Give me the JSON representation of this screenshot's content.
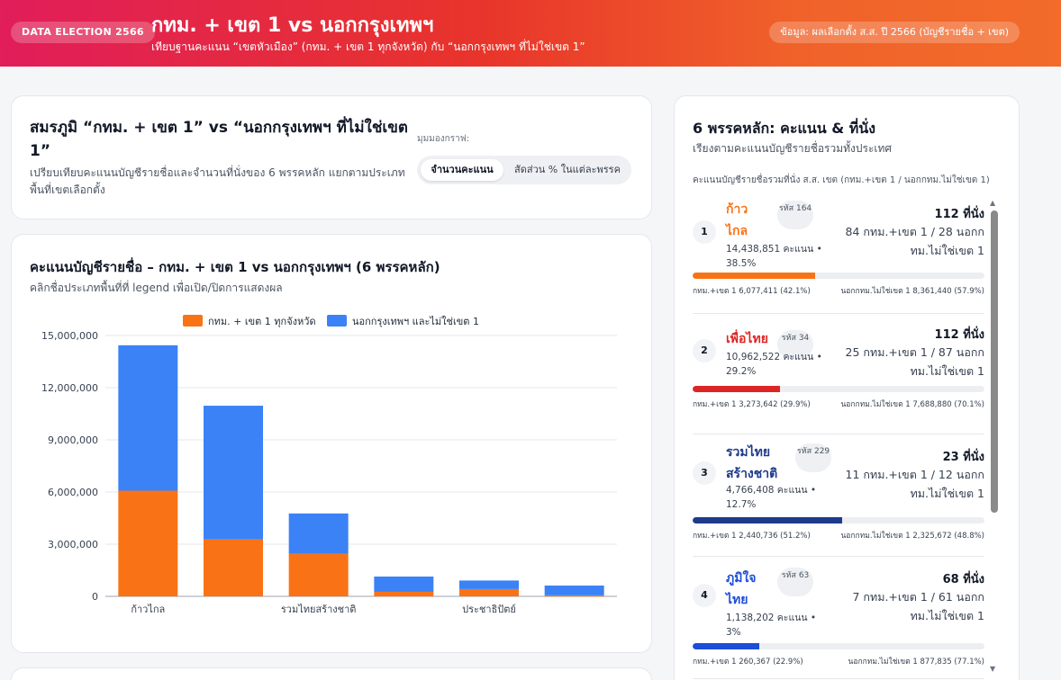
{
  "header": {
    "badge": "DATA ELECTION 2566",
    "title": "กทม. + เขต 1 vs นอกกรุงเทพฯ",
    "subtitle": "เทียบฐานคะแนน “เขตหัวเมือง” (กทม. + เขต 1 ทุกจังหวัด) กับ “นอกกรุงเทพฯ ที่ไม่ใช่เขต 1”",
    "source": "ข้อมูล: ผลเลือกตั้ง ส.ส. ปี 2566 (บัญชีรายชื่อ + เขต)"
  },
  "intro": {
    "title": "สมรภูมิ “กทม. + เขต 1” vs “นอกกรุงเทพฯ ที่ไม่ใช่เขต 1”",
    "description": "เปรียบเทียบคะแนนบัญชีรายชื่อและจำนวนที่นั่งของ 6 พรรคหลัก แยกตามประเภทพื้นที่เขตเลือกตั้ง",
    "view_label": "มุมมองกราฟ:",
    "toggle_active": "จำนวนคะแนน",
    "toggle_alt": "สัดส่วน % ในแต่ละพรรค"
  },
  "chart_card": {
    "title": "คะแนนบัญชีรายชื่อ – กทม. + เขต 1 vs นอกกรุงเทพฯ (6 พรรคหลัก)",
    "subtitle": "คลิกชื่อประเภทพื้นที่ที่ legend เพื่อเปิด/ปิดการแสดงผล"
  },
  "chart_data": {
    "type": "bar",
    "stacked": true,
    "categories": [
      "ก้าวไกล",
      "",
      "รวมไทยสร้างชาติ",
      "",
      "ประชาธิปัตย์",
      ""
    ],
    "series": [
      {
        "name": "กทม. + เขต 1 ทุกจังหวัด",
        "color": "#f97316",
        "values": [
          6077411,
          3273642,
          2440736,
          260367,
          420000,
          60000
        ]
      },
      {
        "name": "นอกกรุงเทพฯ และไม่ใช่เขต 1",
        "color": "#3b82f6",
        "values": [
          8361440,
          7688880,
          2325672,
          877835,
          490000,
          560000
        ]
      }
    ],
    "y_ticks": [
      "0",
      "3,000,000",
      "6,000,000",
      "9,000,000",
      "12,000,000",
      "15,000,000"
    ],
    "ylim": [
      0,
      15000000
    ],
    "grid": true,
    "legend_position": "top-center"
  },
  "right_panel": {
    "title": "6 พรรคหลัก: คะแนน & ที่นั่ง",
    "subtitle": "เรียงตามคะแนนบัญชีรายชื่อรวมทั้งประเทศ",
    "note": "คะแนนบัญชีรายชื่อรวมที่นั่ง ส.ส. เขต (กทม.+เขต 1 / นอกกทม.ไม่ใช่เขต 1)",
    "parties": [
      {
        "rank": "1",
        "name": "ก้าวไกล",
        "color": "#f97316",
        "code": "รหัส 164",
        "votes": "14,438,851 คะแนน • 38.5%",
        "seats": "112 ที่นั่ง",
        "split": "84 กทม.+เขต 1 / 28 นอกกทม.ไม่ใช่เขต 1",
        "share": 0.421,
        "cap_left": "กทม.+เขต 1 6,077,411 (42.1%)",
        "cap_right": "นอกกทม.ไม่ใช่เขต 1 8,361,440 (57.9%)"
      },
      {
        "rank": "2",
        "name": "เพื่อไทย",
        "color": "#dc2626",
        "code": "รหัส 34",
        "votes": "10,962,522 คะแนน • 29.2%",
        "seats": "112 ที่นั่ง",
        "split": "25 กทม.+เขต 1 / 87 นอกกทม.ไม่ใช่เขต 1",
        "share": 0.299,
        "cap_left": "กทม.+เขต 1 3,273,642 (29.9%)",
        "cap_right": "นอกกทม.ไม่ใช่เขต 1 7,688,880 (70.1%)"
      },
      {
        "rank": "3",
        "name": "รวมไทยสร้างชาติ",
        "color": "#1e3a8a",
        "code": "รหัส 229",
        "votes": "4,766,408 คะแนน • 12.7%",
        "seats": "23 ที่นั่ง",
        "split": "11 กทม.+เขต 1 / 12 นอกกทม.ไม่ใช่เขต 1",
        "share": 0.512,
        "cap_left": "กทม.+เขต 1 2,440,736 (51.2%)",
        "cap_right": "นอกกทม.ไม่ใช่เขต 1 2,325,672 (48.8%)"
      },
      {
        "rank": "4",
        "name": "ภูมิใจไทย",
        "color": "#1d4ed8",
        "code": "รหัส 63",
        "votes": "1,138,202 คะแนน • 3%",
        "seats": "68 ที่นั่ง",
        "split": "7 กทม.+เขต 1 / 61 นอกกทม.ไม่ใช่เขต 1",
        "share": 0.229,
        "cap_left": "กทม.+เขต 1 260,367 (22.9%)",
        "cap_right": "นอกกทม.ไม่ใช่เขต 1 877,835 (77.1%)"
      }
    ]
  }
}
